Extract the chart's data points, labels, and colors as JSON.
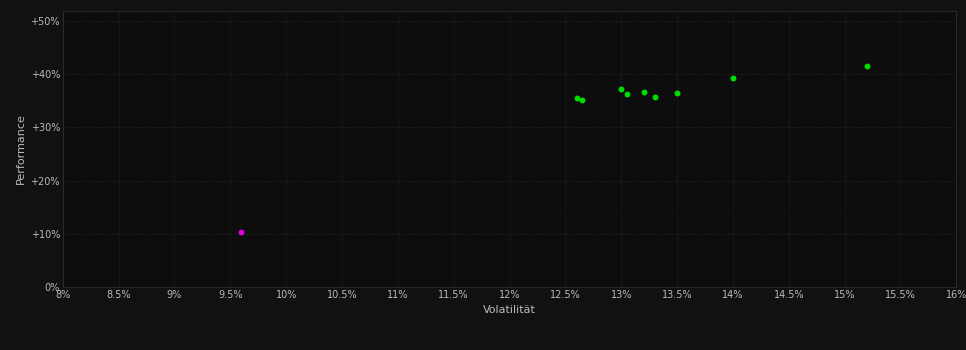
{
  "xlabel": "Volatilität",
  "ylabel": "Performance",
  "background_color": "#111111",
  "plot_bg_color": "#0d0d0d",
  "grid_color": "#2a2a2a",
  "text_color": "#bbbbbb",
  "spine_color": "#333333",
  "xlim": [
    0.08,
    0.16
  ],
  "ylim": [
    0.0,
    0.52
  ],
  "xticks": [
    0.08,
    0.085,
    0.09,
    0.095,
    0.1,
    0.105,
    0.11,
    0.115,
    0.12,
    0.125,
    0.13,
    0.135,
    0.14,
    0.145,
    0.15,
    0.155,
    0.16
  ],
  "yticks": [
    0.0,
    0.1,
    0.2,
    0.3,
    0.4,
    0.5
  ],
  "green_points": [
    [
      0.126,
      0.355
    ],
    [
      0.1265,
      0.352
    ],
    [
      0.13,
      0.373
    ],
    [
      0.1305,
      0.363
    ],
    [
      0.132,
      0.367
    ],
    [
      0.133,
      0.358
    ],
    [
      0.135,
      0.365
    ],
    [
      0.14,
      0.393
    ],
    [
      0.152,
      0.415
    ]
  ],
  "magenta_points": [
    [
      0.096,
      0.103
    ]
  ],
  "green_color": "#00dd00",
  "magenta_color": "#dd00dd",
  "point_size": 18
}
